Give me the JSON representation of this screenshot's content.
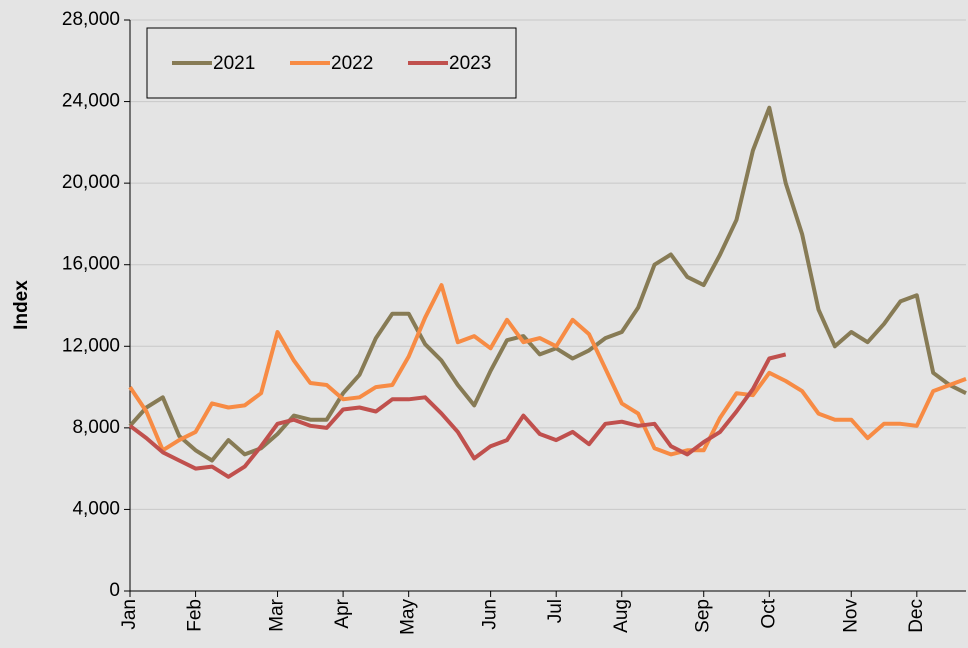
{
  "chart_data": {
    "type": "line",
    "y_label": "Index",
    "categories": [
      "Jan",
      null,
      null,
      null,
      "Feb",
      null,
      null,
      null,
      null,
      "Mar",
      null,
      null,
      null,
      "Apr",
      null,
      null,
      null,
      "May",
      null,
      null,
      null,
      null,
      "Jun",
      null,
      null,
      null,
      "Jul",
      null,
      null,
      null,
      "Aug",
      null,
      null,
      null,
      null,
      "Sep",
      null,
      null,
      null,
      "Oct",
      null,
      null,
      null,
      null,
      "Nov",
      null,
      null,
      null,
      "Dec",
      null,
      null,
      null
    ],
    "series": [
      {
        "name": "2021",
        "color": "#877b55",
        "values": [
          8100,
          9000,
          9500,
          7600,
          6900,
          6400,
          7400,
          6700,
          7000,
          7700,
          8600,
          8400,
          8400,
          9700,
          10600,
          12400,
          13600,
          13600,
          12100,
          11300,
          10100,
          9100,
          10800,
          12300,
          12500,
          11600,
          11900,
          11400,
          11800,
          12400,
          12700,
          13900,
          16000,
          16500,
          15400,
          15000,
          16500,
          18200,
          21600,
          23700,
          20000,
          17500,
          13800,
          12000,
          12700,
          12200,
          13100,
          14200,
          14500,
          10700,
          10100,
          9700
        ]
      },
      {
        "name": "2022",
        "color": "#f78b44",
        "values": [
          10000,
          8800,
          6900,
          7400,
          7800,
          9200,
          9000,
          9100,
          9700,
          12700,
          11300,
          10200,
          10100,
          9400,
          9500,
          10000,
          10100,
          11500,
          13400,
          15000,
          12200,
          12500,
          11900,
          13300,
          12200,
          12400,
          12000,
          13300,
          12600,
          10900,
          9200,
          8700,
          7000,
          6700,
          6900,
          6900,
          8500,
          9700,
          9600,
          10700,
          10300,
          9800,
          8700,
          8400,
          8400,
          7500,
          8200,
          8200,
          8100,
          9800,
          10100,
          10400
        ]
      },
      {
        "name": "2023",
        "color": "#c0504d",
        "values": [
          8100,
          7500,
          6800,
          6400,
          6000,
          6100,
          5600,
          6100,
          7100,
          8200,
          8400,
          8100,
          8000,
          8900,
          9000,
          8800,
          9400,
          9400,
          9500,
          8700,
          7800,
          6500,
          7100,
          7400,
          8600,
          7700,
          7400,
          7800,
          7200,
          8200,
          8300,
          8100,
          8200,
          7100,
          6700,
          7300,
          7800,
          8800,
          9900,
          11400,
          11600,
          null,
          null,
          null,
          null,
          null,
          null,
          null,
          null,
          null,
          null,
          null
        ]
      }
    ],
    "ylim": [
      0,
      28000
    ],
    "yticks": [
      {
        "value": 0,
        "label": "0"
      },
      {
        "value": 4000,
        "label": "4,000"
      },
      {
        "value": 8000,
        "label": "8,000"
      },
      {
        "value": 12000,
        "label": "12,000"
      },
      {
        "value": 16000,
        "label": "16,000"
      },
      {
        "value": 20000,
        "label": "20,000"
      },
      {
        "value": 24000,
        "label": "24,000"
      },
      {
        "value": 28000,
        "label": "28,000"
      }
    ],
    "grid": true
  }
}
